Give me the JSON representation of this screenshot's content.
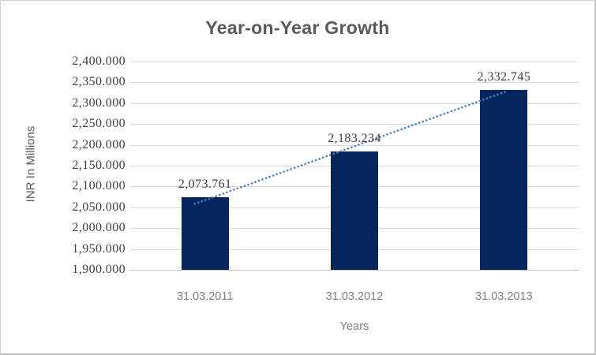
{
  "window": {
    "background": "#ffffff",
    "border_color": "#d2d2d2"
  },
  "chart_data": {
    "type": "bar",
    "title": "Year-on-Year Growth",
    "xlabel": "Years",
    "ylabel": "INR In Millions",
    "categories": [
      "31.03.2011",
      "31.03.2012",
      "31.03.2013"
    ],
    "values": [
      2073.761,
      2183.234,
      2332.745
    ],
    "data_labels": [
      "2,073.761",
      "2,183.234",
      "2,332.745"
    ],
    "ylim": [
      1900,
      2400
    ],
    "ytick_step": 50,
    "ytick_labels": [
      "2,400.000",
      "2,350.000",
      "2,300.000",
      "2,250.000",
      "2,200.000",
      "2,150.000",
      "2,100.000",
      "2,050.000",
      "2,000.000",
      "1,950.000",
      "1,900.000"
    ],
    "grid": "horizontal",
    "legend": "none",
    "trendline": {
      "type": "linear",
      "style": "dotted"
    },
    "colors": {
      "bar": "#04265c",
      "trendline": "#4a80c4",
      "gridline": "#d9d9d9",
      "axis_line": "#bfbfbf",
      "title": "#595959",
      "ytick_label": "#404040",
      "data_label": "#3f3f3f",
      "category_label": "#7f7f7f",
      "axis_title": "#595959"
    }
  }
}
